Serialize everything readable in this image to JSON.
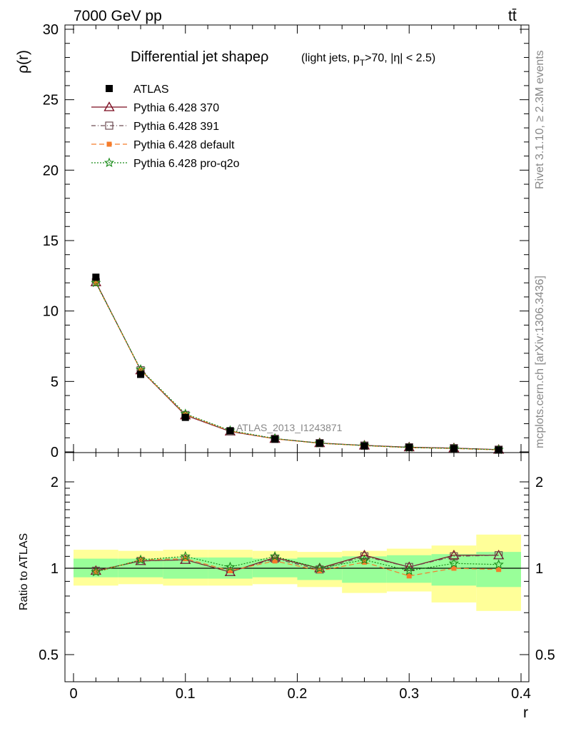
{
  "header": {
    "energy_label": "7000 GeV pp",
    "process_label": "tt̄"
  },
  "side_labels": {
    "rivet": "Rivet 3.1.10, ≥ 2.3M events",
    "mcplots": "mcplots.cern.ch [arXiv:1306.3436]"
  },
  "watermark": "ATLAS_2013_I1243871",
  "title": {
    "main": "Differential jet shape",
    "rho": "ρ",
    "sub_pre": "(light jets, p",
    "sub_sub": "T",
    "sub_post": ">70, |η| < 2.5)"
  },
  "colors": {
    "atlas": "#000000",
    "p370": "#7a0a1e",
    "p391": "#6e4d54",
    "pdefault": "#f57c2b",
    "pq2o": "#1a8c1a",
    "band_inner": "#99ff99",
    "band_outer": "#ffff99"
  },
  "chart_data": [
    {
      "type": "line",
      "ylabel": "ρ(r)",
      "xlim": [
        0,
        0.4
      ],
      "ylim": [
        0,
        30
      ],
      "yticks": [
        0,
        5,
        10,
        15,
        20,
        25,
        30
      ],
      "x": [
        0.02,
        0.06,
        0.1,
        0.14,
        0.18,
        0.22,
        0.26,
        0.3,
        0.34,
        0.38
      ],
      "series": [
        {
          "name": "ATLAS",
          "key": "atlas",
          "marker": "square",
          "values": [
            12.4,
            5.5,
            2.45,
            1.5,
            0.9,
            0.62,
            0.42,
            0.32,
            0.24,
            0.14
          ]
        },
        {
          "name": "Pythia 6.428 370",
          "key": "p370",
          "marker": "triangle",
          "dash": "",
          "values": [
            12.05,
            5.8,
            2.6,
            1.45,
            0.93,
            0.63,
            0.46,
            0.33,
            0.27,
            0.16
          ]
        },
        {
          "name": "Pythia 6.428 391",
          "key": "p391",
          "marker": "square-open",
          "dash": "6,3,1,3",
          "values": [
            12.05,
            5.8,
            2.62,
            1.45,
            0.93,
            0.62,
            0.45,
            0.33,
            0.27,
            0.16
          ]
        },
        {
          "name": "Pythia 6.428 default",
          "key": "pdefault",
          "marker": "square-filled",
          "dash": "7,4",
          "values": [
            12.0,
            5.8,
            2.65,
            1.48,
            0.92,
            0.61,
            0.44,
            0.3,
            0.24,
            0.14
          ]
        },
        {
          "name": "Pythia 6.428 pro-q2o",
          "key": "pq2o",
          "marker": "star",
          "dash": "2,2",
          "values": [
            12.0,
            5.85,
            2.7,
            1.52,
            0.95,
            0.62,
            0.45,
            0.31,
            0.25,
            0.15
          ]
        }
      ]
    },
    {
      "type": "line",
      "ylabel": "Ratio to ATLAS",
      "xlabel": "r",
      "xlim": [
        0,
        0.4
      ],
      "ylim": [
        0.45,
        2.3
      ],
      "log_y": true,
      "yticks": [
        0.5,
        1,
        2
      ],
      "xticks": [
        0,
        0.1,
        0.2,
        0.3,
        0.4
      ],
      "bins": [
        [
          0,
          0.04
        ],
        [
          0.04,
          0.08
        ],
        [
          0.08,
          0.12
        ],
        [
          0.12,
          0.16
        ],
        [
          0.16,
          0.2
        ],
        [
          0.2,
          0.24
        ],
        [
          0.24,
          0.28
        ],
        [
          0.28,
          0.32
        ],
        [
          0.32,
          0.36
        ],
        [
          0.36,
          0.4
        ]
      ],
      "band_inner": [
        [
          0.93,
          1.08
        ],
        [
          0.93,
          1.08
        ],
        [
          0.92,
          1.09
        ],
        [
          0.92,
          1.09
        ],
        [
          0.93,
          1.08
        ],
        [
          0.91,
          1.09
        ],
        [
          0.89,
          1.1
        ],
        [
          0.89,
          1.11
        ],
        [
          0.87,
          1.12
        ],
        [
          0.86,
          1.14
        ]
      ],
      "band_outer": [
        [
          0.87,
          1.16
        ],
        [
          0.88,
          1.15
        ],
        [
          0.87,
          1.16
        ],
        [
          0.87,
          1.16
        ],
        [
          0.88,
          1.15
        ],
        [
          0.86,
          1.14
        ],
        [
          0.82,
          1.15
        ],
        [
          0.83,
          1.17
        ],
        [
          0.76,
          1.2
        ],
        [
          0.71,
          1.31
        ]
      ],
      "x": [
        0.02,
        0.06,
        0.1,
        0.14,
        0.18,
        0.22,
        0.26,
        0.3,
        0.34,
        0.38
      ],
      "series": [
        {
          "name": "Pythia 6.428 370",
          "key": "p370",
          "marker": "triangle",
          "dash": "",
          "values": [
            0.98,
            1.06,
            1.07,
            0.97,
            1.09,
            1.0,
            1.11,
            1.01,
            1.11,
            1.11
          ]
        },
        {
          "name": "Pythia 6.428 391",
          "key": "p391",
          "marker": "square-open",
          "dash": "6,3,1,3",
          "values": [
            0.98,
            1.06,
            1.07,
            0.97,
            1.08,
            0.99,
            1.1,
            1.01,
            1.1,
            1.11
          ]
        },
        {
          "name": "Pythia 6.428 default",
          "key": "pdefault",
          "marker": "square-filled",
          "dash": "7,4",
          "values": [
            0.97,
            1.07,
            1.08,
            0.98,
            1.06,
            0.98,
            1.05,
            0.94,
            1.0,
            0.99
          ]
        },
        {
          "name": "Pythia 6.428 pro-q2o",
          "key": "pq2o",
          "marker": "star",
          "dash": "2,2",
          "values": [
            0.97,
            1.07,
            1.1,
            1.01,
            1.1,
            1.0,
            1.07,
            0.98,
            1.04,
            1.03
          ]
        }
      ]
    }
  ]
}
